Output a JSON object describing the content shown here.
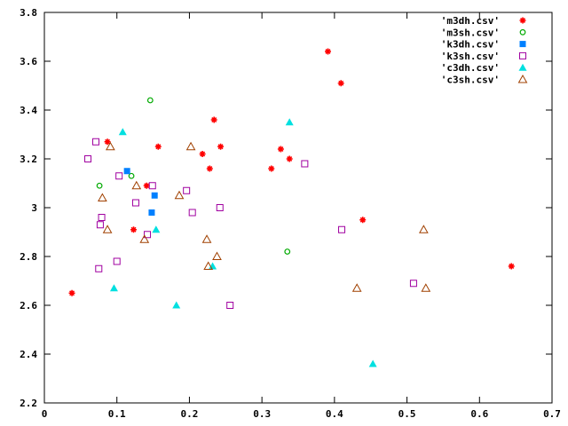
{
  "chart_data": {
    "type": "scatter",
    "title": "",
    "xlabel": "",
    "ylabel": "",
    "xlim": [
      0,
      0.7
    ],
    "ylim": [
      2.2,
      3.8
    ],
    "grid": false,
    "legend_position": "top-right",
    "x_ticks": [
      {
        "value": 0,
        "label": "0"
      },
      {
        "value": 0.1,
        "label": "0.1"
      },
      {
        "value": 0.2,
        "label": "0.2"
      },
      {
        "value": 0.3,
        "label": "0.3"
      },
      {
        "value": 0.4,
        "label": "0.4"
      },
      {
        "value": 0.5,
        "label": "0.5"
      },
      {
        "value": 0.6,
        "label": "0.6"
      },
      {
        "value": 0.7,
        "label": "0.7"
      }
    ],
    "y_ticks": [
      {
        "value": 2.2,
        "label": "2.2"
      },
      {
        "value": 2.4,
        "label": "2.4"
      },
      {
        "value": 2.6,
        "label": "2.6"
      },
      {
        "value": 2.8,
        "label": "2.8"
      },
      {
        "value": 3.0,
        "label": "3"
      },
      {
        "value": 3.2,
        "label": "3.2"
      },
      {
        "value": 3.4,
        "label": "3.4"
      },
      {
        "value": 3.6,
        "label": "3.6"
      },
      {
        "value": 3.8,
        "label": "3.8"
      }
    ],
    "series": [
      {
        "name": "'m3dh.csv'",
        "marker": "star",
        "color": "#ff0000",
        "points": [
          [
            0.038,
            2.65
          ],
          [
            0.087,
            3.27
          ],
          [
            0.123,
            2.91
          ],
          [
            0.141,
            3.09
          ],
          [
            0.157,
            3.25
          ],
          [
            0.218,
            3.22
          ],
          [
            0.228,
            3.16
          ],
          [
            0.234,
            3.36
          ],
          [
            0.243,
            3.25
          ],
          [
            0.313,
            3.16
          ],
          [
            0.326,
            3.24
          ],
          [
            0.338,
            3.2
          ],
          [
            0.391,
            3.64
          ],
          [
            0.409,
            3.51
          ],
          [
            0.439,
            2.95
          ],
          [
            0.644,
            2.76
          ]
        ]
      },
      {
        "name": "'m3sh.csv'",
        "marker": "circle",
        "color": "#00aa00",
        "points": [
          [
            0.076,
            3.09
          ],
          [
            0.12,
            3.13
          ],
          [
            0.146,
            3.44
          ],
          [
            0.335,
            2.82
          ]
        ]
      },
      {
        "name": "'k3dh.csv'",
        "marker": "square-filled",
        "color": "#0080ff",
        "points": [
          [
            0.114,
            3.15
          ],
          [
            0.148,
            2.98
          ],
          [
            0.152,
            3.05
          ]
        ]
      },
      {
        "name": "'k3sh.csv'",
        "marker": "square",
        "color": "#a000a0",
        "points": [
          [
            0.06,
            3.2
          ],
          [
            0.071,
            3.27
          ],
          [
            0.075,
            2.75
          ],
          [
            0.077,
            2.93
          ],
          [
            0.079,
            2.96
          ],
          [
            0.1,
            2.78
          ],
          [
            0.103,
            3.13
          ],
          [
            0.126,
            3.02
          ],
          [
            0.142,
            2.89
          ],
          [
            0.149,
            3.09
          ],
          [
            0.196,
            3.07
          ],
          [
            0.204,
            2.98
          ],
          [
            0.242,
            3.0
          ],
          [
            0.256,
            2.6
          ],
          [
            0.359,
            3.18
          ],
          [
            0.41,
            2.91
          ],
          [
            0.509,
            2.69
          ]
        ]
      },
      {
        "name": "'c3dh.csv'",
        "marker": "triangle-filled",
        "color": "#00e0e0",
        "points": [
          [
            0.096,
            2.67
          ],
          [
            0.108,
            3.31
          ],
          [
            0.154,
            2.91
          ],
          [
            0.182,
            2.6
          ],
          [
            0.232,
            2.76
          ],
          [
            0.338,
            3.35
          ],
          [
            0.453,
            2.36
          ]
        ]
      },
      {
        "name": "'c3sh.csv'",
        "marker": "triangle",
        "color": "#a04000",
        "points": [
          [
            0.08,
            3.04
          ],
          [
            0.087,
            2.91
          ],
          [
            0.091,
            3.25
          ],
          [
            0.127,
            3.09
          ],
          [
            0.138,
            2.87
          ],
          [
            0.186,
            3.05
          ],
          [
            0.202,
            3.25
          ],
          [
            0.224,
            2.87
          ],
          [
            0.226,
            2.76
          ],
          [
            0.238,
            2.8
          ],
          [
            0.431,
            2.67
          ],
          [
            0.523,
            2.91
          ],
          [
            0.526,
            2.67
          ]
        ]
      }
    ]
  }
}
